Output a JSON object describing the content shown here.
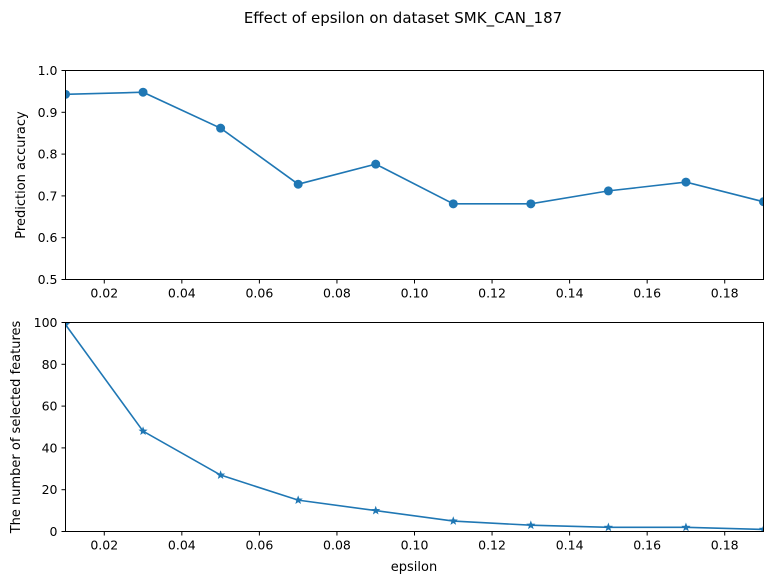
{
  "title": "Effect of epsilon on dataset SMK_CAN_187",
  "colors": {
    "series": "#1f77b4",
    "axes": "#000000",
    "background": "#ffffff"
  },
  "chart_data": [
    {
      "type": "line",
      "marker": "circle",
      "x": [
        0.01,
        0.03,
        0.05,
        0.07,
        0.09,
        0.11,
        0.13,
        0.15,
        0.17,
        0.19
      ],
      "y": [
        0.943,
        0.948,
        0.862,
        0.728,
        0.776,
        0.681,
        0.681,
        0.712,
        0.733,
        0.686
      ],
      "xlabel": "",
      "ylabel": "Prediction accuracy",
      "xlim": [
        0.01,
        0.19
      ],
      "ylim": [
        0.5,
        1.0
      ],
      "xticks": [
        "0.02",
        "0.04",
        "0.06",
        "0.08",
        "0.10",
        "0.12",
        "0.14",
        "0.16",
        "0.18"
      ],
      "yticks": [
        "0.5",
        "0.6",
        "0.7",
        "0.8",
        "0.9",
        "1.0"
      ],
      "grid": false
    },
    {
      "type": "line",
      "marker": "star",
      "x": [
        0.01,
        0.03,
        0.05,
        0.07,
        0.09,
        0.11,
        0.13,
        0.15,
        0.17,
        0.19
      ],
      "y": [
        99,
        48,
        27,
        15,
        10,
        5,
        3,
        2,
        2,
        1
      ],
      "xlabel": "epsilon",
      "ylabel": "The number of selected features",
      "xlim": [
        0.01,
        0.19
      ],
      "ylim": [
        0,
        100
      ],
      "xticks": [
        "0.02",
        "0.04",
        "0.06",
        "0.08",
        "0.10",
        "0.12",
        "0.14",
        "0.16",
        "0.18"
      ],
      "yticks": [
        "0",
        "20",
        "40",
        "60",
        "80",
        "100"
      ],
      "grid": false
    }
  ]
}
